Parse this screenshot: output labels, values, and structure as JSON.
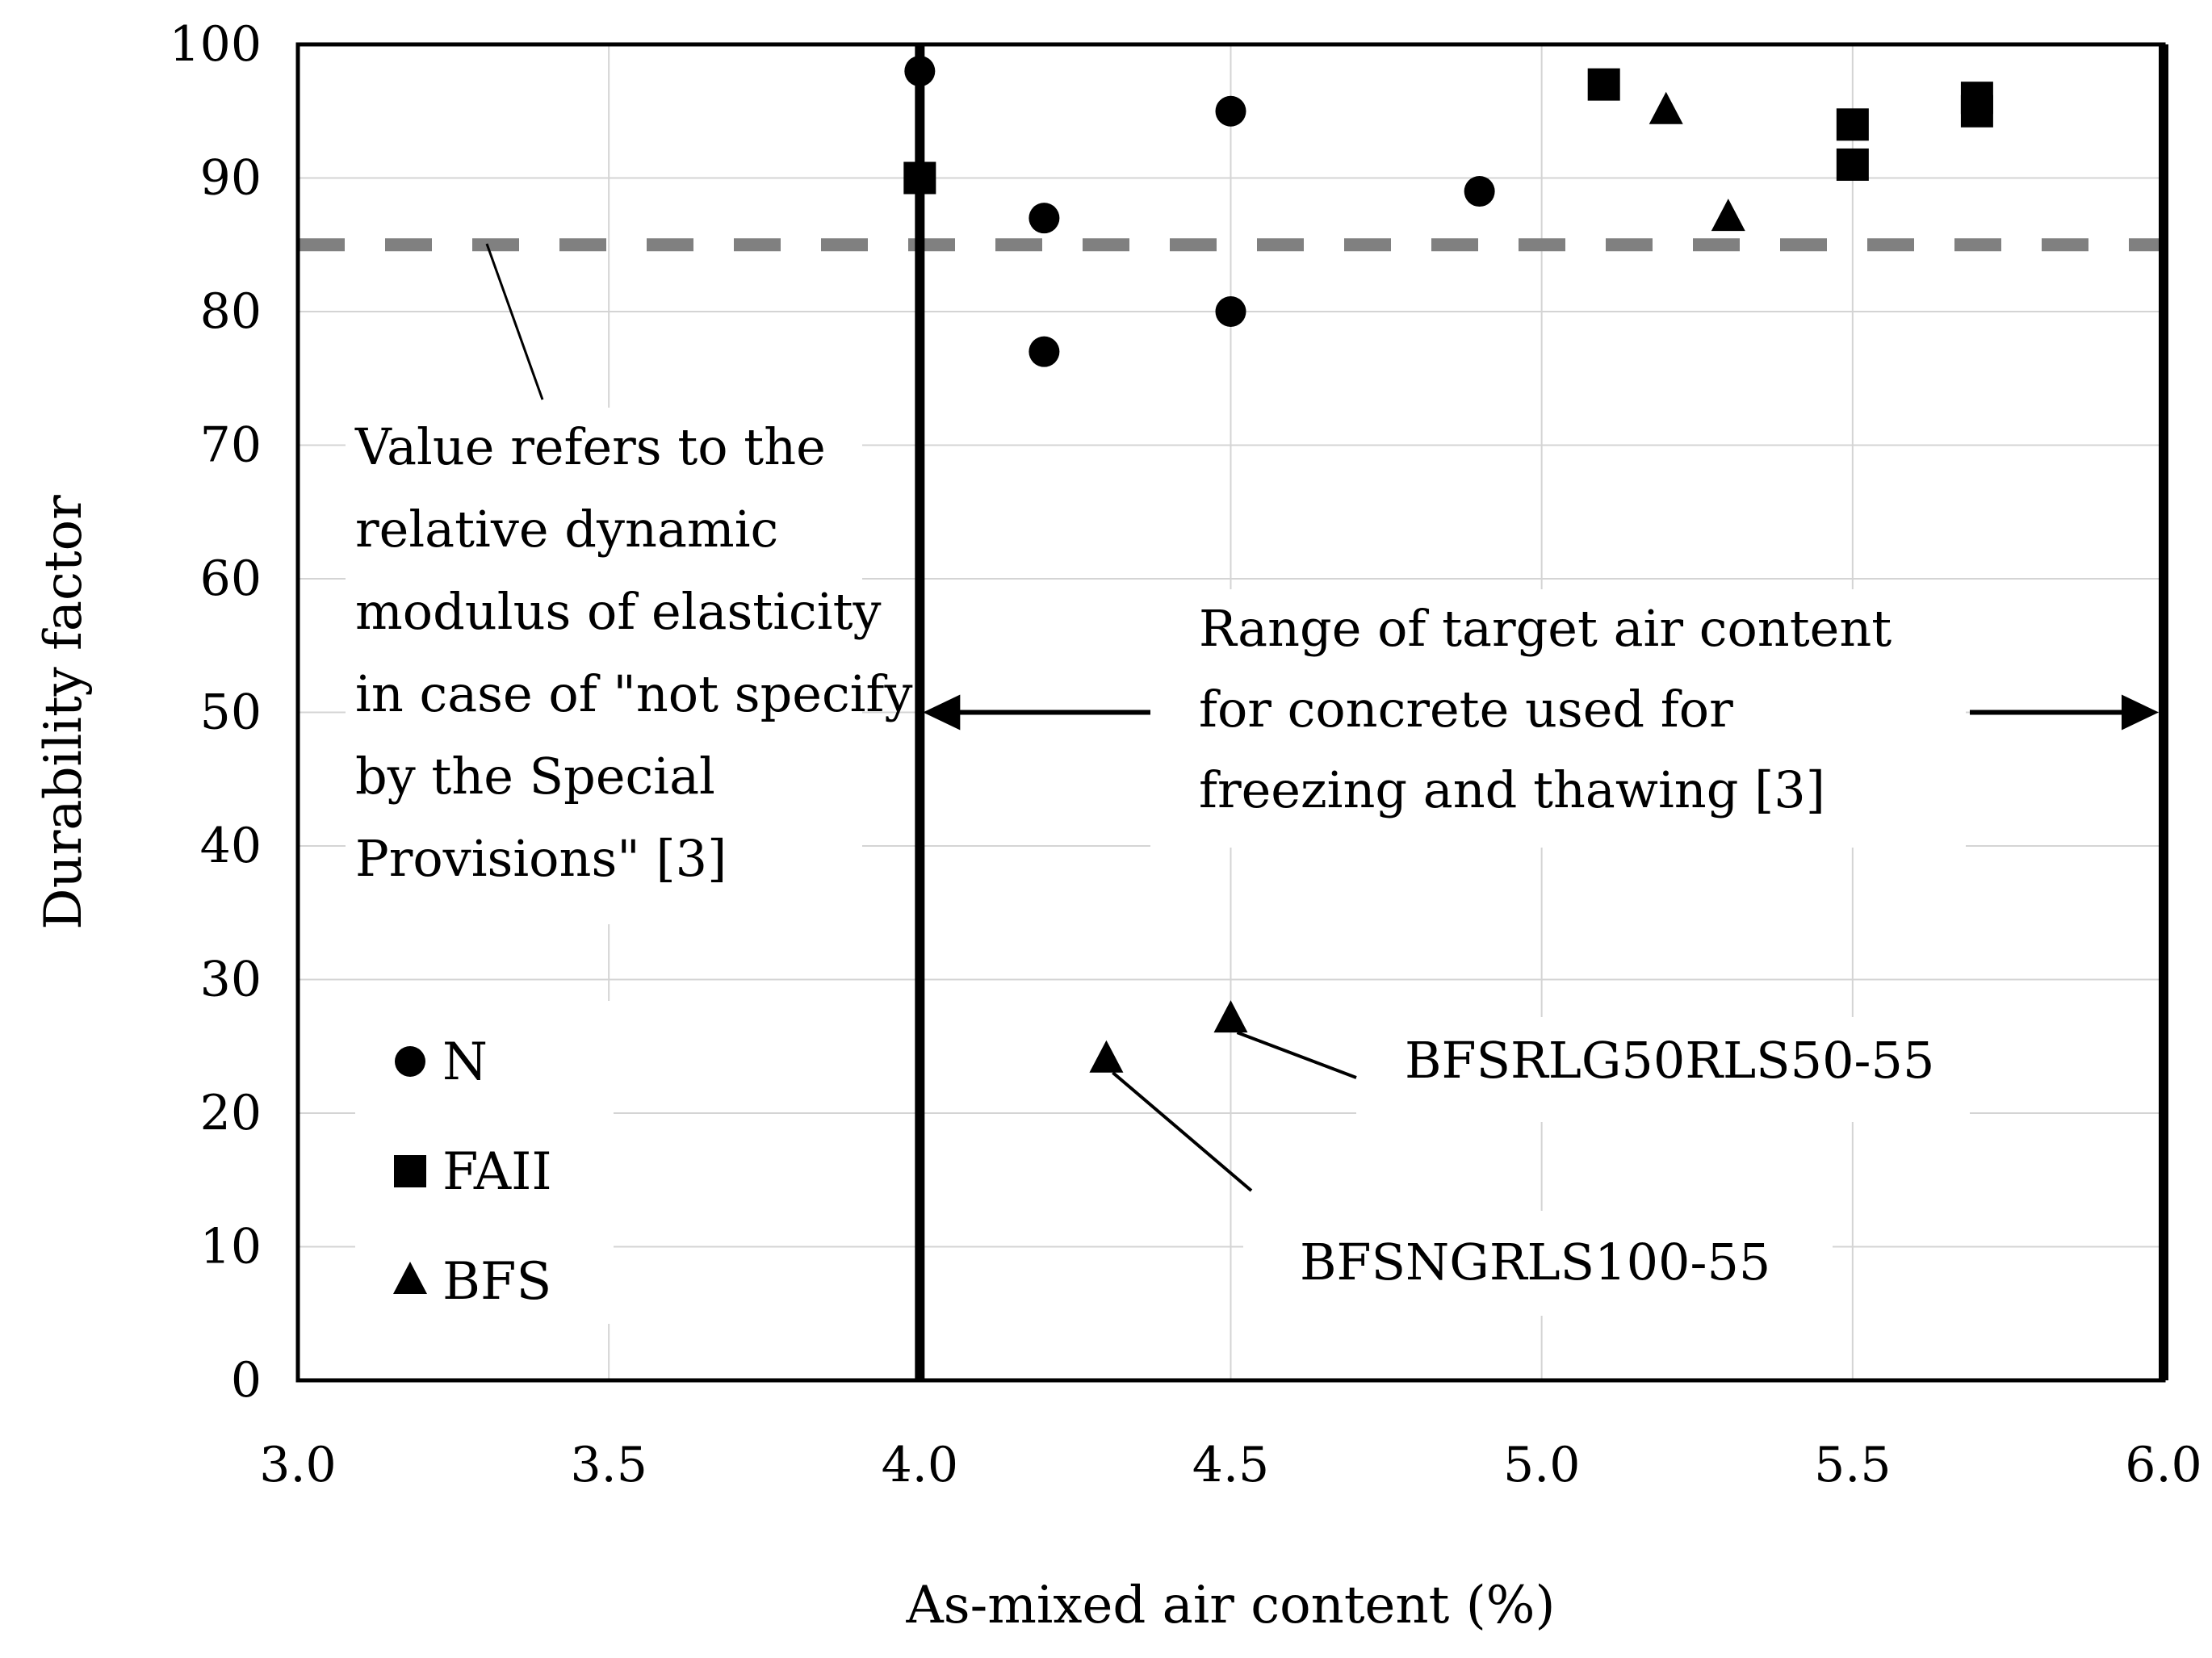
{
  "chart_data": {
    "type": "scatter",
    "xlabel": "As-mixed air content (%)",
    "ylabel": "Durability factor",
    "xlim": [
      3.0,
      6.0
    ],
    "ylim": [
      0,
      100
    ],
    "x_ticks": [
      "3.0",
      "3.5",
      "4.0",
      "4.5",
      "5.0",
      "5.5",
      "6.0"
    ],
    "y_ticks": [
      "0",
      "10",
      "20",
      "30",
      "40",
      "50",
      "60",
      "70",
      "80",
      "90",
      "100"
    ],
    "grid": true,
    "reference_line": {
      "y": 85,
      "style": "dashed",
      "color": "#808080"
    },
    "target_range": {
      "x_min": 4.0,
      "x_max": 6.0
    },
    "series": [
      {
        "name": "N",
        "marker": "circle",
        "points": [
          [
            4.0,
            98
          ],
          [
            4.2,
            87
          ],
          [
            4.2,
            77
          ],
          [
            4.5,
            95
          ],
          [
            4.5,
            80
          ],
          [
            4.9,
            89
          ]
        ]
      },
      {
        "name": "FAII",
        "marker": "square",
        "points": [
          [
            4.0,
            90
          ],
          [
            5.1,
            97
          ],
          [
            5.5,
            94
          ],
          [
            5.5,
            91
          ],
          [
            5.7,
            96
          ],
          [
            5.7,
            95
          ]
        ]
      },
      {
        "name": "BFS",
        "marker": "triangle",
        "points": [
          [
            5.2,
            95
          ],
          [
            5.3,
            87
          ],
          [
            4.5,
            27
          ],
          [
            4.3,
            24
          ]
        ]
      }
    ],
    "annotations": {
      "reference_note": [
        "Value refers to the",
        "relative dynamic",
        "modulus of elasticity",
        "in case of \"not specify",
        "by the Special",
        "Provisions\" [3]"
      ],
      "range_note": [
        "Range of target  air content",
        "for concrete used for",
        "freezing and thawing [3]"
      ],
      "point_labels": [
        {
          "text": "BFSRLG50RLS50-55",
          "x": 4.5,
          "y": 27
        },
        {
          "text": "BFSNGRLS100-55",
          "x": 4.3,
          "y": 24
        }
      ]
    },
    "legend": {
      "placement": "bottom-left",
      "entries": [
        "N",
        "FAII",
        "BFS"
      ]
    }
  }
}
